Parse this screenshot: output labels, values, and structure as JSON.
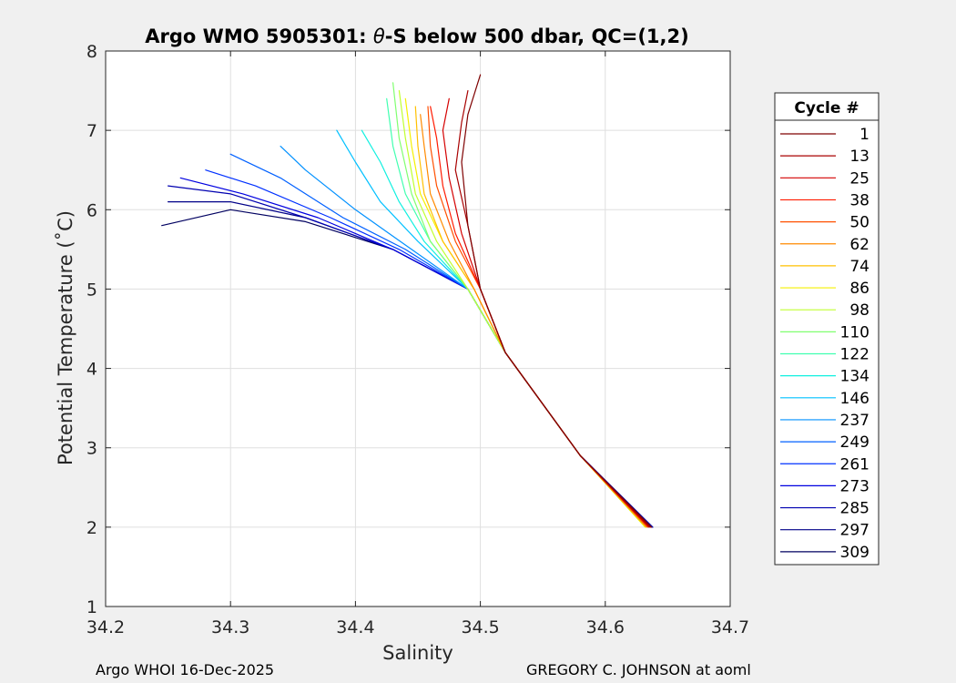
{
  "chart_data": {
    "type": "line",
    "title_prefix": "Argo WMO 5905301: ",
    "title_theta": "θ",
    "title_suffix": "-S below 500 dbar,  QC=(1,2)",
    "xlabel": "Salinity",
    "ylabel": "Potential Temperature (˚C)",
    "xlim": [
      34.2,
      34.7
    ],
    "ylim": [
      1,
      8
    ],
    "xticks": [
      "34.2",
      "34.3",
      "34.4",
      "34.5",
      "34.6",
      "34.7"
    ],
    "yticks": [
      "1",
      "2",
      "3",
      "4",
      "5",
      "6",
      "7",
      "8"
    ],
    "grid": true,
    "legend": {
      "title": "Cycle #",
      "placement": "right-outside",
      "entries": [
        {
          "label": "1",
          "color": "#7f0000"
        },
        {
          "label": "13",
          "color": "#a80000"
        },
        {
          "label": "25",
          "color": "#d40000"
        },
        {
          "label": "38",
          "color": "#ff1a00"
        },
        {
          "label": "50",
          "color": "#ff5000"
        },
        {
          "label": "62",
          "color": "#ff8a00"
        },
        {
          "label": "74",
          "color": "#ffc000"
        },
        {
          "label": "86",
          "color": "#f5f000"
        },
        {
          "label": "98",
          "color": "#c0ff30"
        },
        {
          "label": "110",
          "color": "#80ff70"
        },
        {
          "label": "122",
          "color": "#40ffb0"
        },
        {
          "label": "134",
          "color": "#10f0e0"
        },
        {
          "label": "146",
          "color": "#00c0ff"
        },
        {
          "label": "237",
          "color": "#0090ff"
        },
        {
          "label": "249",
          "color": "#0060ff"
        },
        {
          "label": "261",
          "color": "#0030ff"
        },
        {
          "label": "273",
          "color": "#0000e0"
        },
        {
          "label": "285",
          "color": "#0000b0"
        },
        {
          "label": "297",
          "color": "#000088"
        },
        {
          "label": "309",
          "color": "#000060"
        }
      ]
    },
    "series": [
      {
        "name": "1",
        "color": "#7f0000",
        "x": [
          34.637,
          34.58,
          34.52,
          34.5,
          34.49,
          34.485,
          34.49,
          34.5
        ],
        "y": [
          2.0,
          2.9,
          4.2,
          5.0,
          5.8,
          6.6,
          7.2,
          7.7
        ]
      },
      {
        "name": "13",
        "color": "#a80000",
        "x": [
          34.636,
          34.58,
          34.52,
          34.5,
          34.49,
          34.48,
          34.485,
          34.49
        ],
        "y": [
          2.0,
          2.9,
          4.2,
          5.0,
          5.8,
          6.5,
          7.1,
          7.5
        ]
      },
      {
        "name": "25",
        "color": "#d40000",
        "x": [
          34.635,
          34.58,
          34.52,
          34.5,
          34.485,
          34.475,
          34.47,
          34.475
        ],
        "y": [
          2.0,
          2.9,
          4.2,
          5.0,
          5.7,
          6.4,
          7.0,
          7.4
        ]
      },
      {
        "name": "38",
        "color": "#ff1a00",
        "x": [
          34.636,
          34.58,
          34.52,
          34.5,
          34.48,
          34.47,
          34.465,
          34.46
        ],
        "y": [
          2.0,
          2.9,
          4.2,
          5.0,
          5.7,
          6.3,
          6.9,
          7.3
        ]
      },
      {
        "name": "50",
        "color": "#ff5000",
        "x": [
          34.634,
          34.58,
          34.52,
          34.5,
          34.48,
          34.465,
          34.46,
          34.458
        ],
        "y": [
          2.0,
          2.9,
          4.2,
          5.0,
          5.6,
          6.3,
          6.8,
          7.3
        ]
      },
      {
        "name": "62",
        "color": "#ff8a00",
        "x": [
          34.633,
          34.58,
          34.52,
          34.495,
          34.475,
          34.46,
          34.455,
          34.452
        ],
        "y": [
          2.0,
          2.9,
          4.2,
          5.0,
          5.6,
          6.2,
          6.8,
          7.2
        ]
      },
      {
        "name": "74",
        "color": "#ffc000",
        "x": [
          34.633,
          34.58,
          34.52,
          34.495,
          34.47,
          34.455,
          34.45,
          34.448
        ],
        "y": [
          2.0,
          2.9,
          4.2,
          5.0,
          5.6,
          6.2,
          6.8,
          7.3
        ]
      },
      {
        "name": "86",
        "color": "#f5f000",
        "x": [
          34.632,
          34.58,
          34.52,
          34.495,
          34.47,
          34.452,
          34.445,
          34.44
        ],
        "y": [
          2.0,
          2.9,
          4.2,
          5.0,
          5.6,
          6.2,
          6.8,
          7.4
        ]
      },
      {
        "name": "98",
        "color": "#c0ff30",
        "x": [
          34.633,
          34.58,
          34.52,
          34.49,
          34.465,
          34.448,
          34.44,
          34.435
        ],
        "y": [
          2.0,
          2.9,
          4.2,
          5.0,
          5.6,
          6.2,
          6.9,
          7.5
        ]
      },
      {
        "name": "110",
        "color": "#80ff70",
        "x": [
          34.632,
          34.58,
          34.52,
          34.49,
          34.46,
          34.445,
          34.435,
          34.43
        ],
        "y": [
          2.0,
          2.9,
          4.2,
          5.0,
          5.6,
          6.2,
          6.9,
          7.6
        ]
      },
      {
        "name": "122",
        "color": "#40ffb0",
        "x": [
          34.633,
          34.58,
          34.52,
          34.49,
          34.46,
          34.44,
          34.43,
          34.425
        ],
        "y": [
          2.0,
          2.9,
          4.2,
          5.0,
          5.6,
          6.2,
          6.8,
          7.4
        ]
      },
      {
        "name": "134",
        "color": "#10f0e0",
        "x": [
          34.633,
          34.58,
          34.52,
          34.49,
          34.455,
          34.435,
          34.42,
          34.405
        ],
        "y": [
          2.0,
          2.9,
          4.2,
          5.0,
          5.6,
          6.1,
          6.6,
          7.0
        ]
      },
      {
        "name": "146",
        "color": "#00c0ff",
        "x": [
          34.634,
          34.58,
          34.52,
          34.49,
          34.45,
          34.42,
          34.4,
          34.385
        ],
        "y": [
          2.0,
          2.9,
          4.2,
          5.0,
          5.6,
          6.1,
          6.6,
          7.0
        ]
      },
      {
        "name": "237",
        "color": "#0090ff",
        "x": [
          34.635,
          34.58,
          34.52,
          34.49,
          34.445,
          34.4,
          34.36,
          34.34
        ],
        "y": [
          2.0,
          2.9,
          4.2,
          5.0,
          5.5,
          6.0,
          6.5,
          6.8
        ]
      },
      {
        "name": "249",
        "color": "#0060ff",
        "x": [
          34.636,
          34.58,
          34.52,
          34.49,
          34.44,
          34.39,
          34.34,
          34.3
        ],
        "y": [
          2.0,
          2.9,
          4.2,
          5.0,
          5.5,
          5.9,
          6.4,
          6.7
        ]
      },
      {
        "name": "261",
        "color": "#0030ff",
        "x": [
          34.637,
          34.58,
          34.52,
          34.49,
          34.435,
          34.38,
          34.32,
          34.28
        ],
        "y": [
          2.0,
          2.9,
          4.2,
          5.0,
          5.5,
          5.9,
          6.3,
          6.5
        ]
      },
      {
        "name": "273",
        "color": "#0000e0",
        "x": [
          34.637,
          34.58,
          34.52,
          34.49,
          34.43,
          34.37,
          34.31,
          34.26
        ],
        "y": [
          2.0,
          2.9,
          4.2,
          5.0,
          5.5,
          5.9,
          6.2,
          6.4
        ]
      },
      {
        "name": "285",
        "color": "#0000b0",
        "x": [
          34.638,
          34.58,
          34.52,
          34.49,
          34.43,
          34.36,
          34.3,
          34.25
        ],
        "y": [
          2.0,
          2.9,
          4.2,
          5.0,
          5.5,
          5.9,
          6.2,
          6.3
        ]
      },
      {
        "name": "297",
        "color": "#000088",
        "x": [
          34.638,
          34.58,
          34.52,
          34.49,
          34.43,
          34.36,
          34.3,
          34.25
        ],
        "y": [
          2.0,
          2.9,
          4.2,
          5.0,
          5.5,
          5.9,
          6.1,
          6.1
        ]
      },
      {
        "name": "309",
        "color": "#000060",
        "x": [
          34.638,
          34.58,
          34.52,
          34.49,
          34.43,
          34.36,
          34.3,
          34.245
        ],
        "y": [
          2.0,
          2.9,
          4.2,
          5.0,
          5.5,
          5.85,
          6.0,
          5.8
        ]
      }
    ]
  },
  "footer": {
    "left": "Argo WHOI 16-Dec-2025",
    "right": "GREGORY C. JOHNSON at aoml"
  }
}
